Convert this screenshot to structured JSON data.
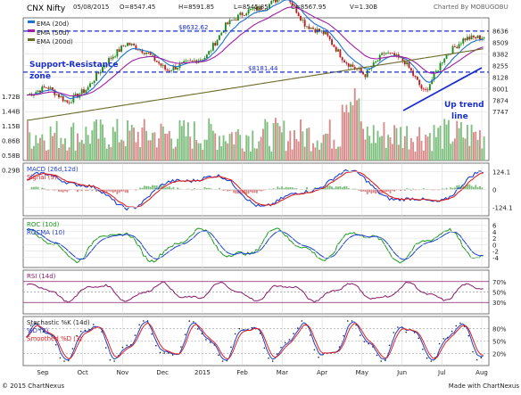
{
  "header": {
    "title": "CNX Nifty",
    "date": "05/08/2015",
    "open": "O=8547.45",
    "high": "H=8591.85",
    "low": "L=8545.85",
    "close": "C=8567.95",
    "volume": "V=1.30B",
    "brand": "Charted By MOBUGOBU"
  },
  "footer": {
    "copyright": "© 2015 ChartNexus",
    "made_with": "Made with ChartNexus"
  },
  "chart_data": [
    {
      "type": "candlestick",
      "panel": "price",
      "title": "CNX Nifty",
      "legend": [
        "EMA (20d)",
        "EMA (50d)",
        "EMA (200d)"
      ],
      "legend_colors": [
        "#1e6fd0",
        "#a020a0",
        "#6b6b2a"
      ],
      "x_ticks": [
        "Sep",
        "Oct",
        "Nov",
        "Dec",
        "2015",
        "Feb",
        "Mar",
        "Apr",
        "May",
        "Jun",
        "Jul",
        "Aug"
      ],
      "y_ticks": [
        8636,
        8509,
        8382,
        8255,
        8128,
        8001,
        7874,
        7747
      ],
      "volume_ticks": [
        "1.72B",
        "1.44B",
        "1.15B",
        "0.86B",
        "0.58B",
        "0.29B"
      ],
      "ylim": [
        7700,
        8700
      ],
      "price_path": [
        {
          "month": "Sep",
          "close": 7930
        },
        {
          "month": "Sep",
          "close": 8020
        },
        {
          "month": "Oct",
          "close": 7850
        },
        {
          "month": "Oct",
          "close": 8000
        },
        {
          "month": "Nov",
          "close": 8300
        },
        {
          "month": "Nov",
          "close": 8500
        },
        {
          "month": "Dec",
          "close": 8400
        },
        {
          "month": "Dec",
          "close": 8200
        },
        {
          "month": "Dec",
          "close": 8280
        },
        {
          "month": "2015",
          "close": 8350
        },
        {
          "month": "2015",
          "close": 8700
        },
        {
          "month": "Feb",
          "close": 8850
        },
        {
          "month": "Feb",
          "close": 8900
        },
        {
          "month": "Mar",
          "close": 9050
        },
        {
          "month": "Mar",
          "close": 8700
        },
        {
          "month": "Apr",
          "close": 8600
        },
        {
          "month": "Apr",
          "close": 8300
        },
        {
          "month": "May",
          "close": 8150
        },
        {
          "month": "May",
          "close": 8400
        },
        {
          "month": "Jun",
          "close": 8300
        },
        {
          "month": "Jun",
          "close": 7950
        },
        {
          "month": "Jul",
          "close": 8350
        },
        {
          "month": "Jul",
          "close": 8550
        },
        {
          "month": "Aug",
          "close": 8568
        }
      ],
      "annotations": [
        {
          "text": "$8632.62",
          "kind": "resistance",
          "value": 8632.62
        },
        {
          "text": "$8181.44",
          "kind": "support",
          "value": 8181.44
        },
        {
          "text": "Support-Resistance",
          "kind": "note"
        },
        {
          "text": "zone",
          "kind": "note"
        },
        {
          "text": "Up trend",
          "kind": "note"
        },
        {
          "text": "line",
          "kind": "note"
        }
      ],
      "grid": true
    },
    {
      "type": "line",
      "panel": "macd",
      "legend": [
        "MACD (26d,12d)",
        "Signal (9)"
      ],
      "legend_colors": [
        "#1a3fd0",
        "#e02020"
      ],
      "y_ticks": [
        124.1,
        0,
        -124.1
      ]
    },
    {
      "type": "line",
      "panel": "roc",
      "legend": [
        "ROC (10d)",
        "ROCMA (10)"
      ],
      "legend_colors": [
        "#1a9a1a",
        "#1a3fd0"
      ],
      "y_ticks": [
        6,
        4,
        2,
        0,
        -2,
        -4
      ]
    },
    {
      "type": "line",
      "panel": "rsi",
      "legend": [
        "RSI (14d)"
      ],
      "legend_colors": [
        "#8a1a6a"
      ],
      "y_ticks": [
        "70%",
        "50%",
        "30%"
      ]
    },
    {
      "type": "line",
      "panel": "stochastic",
      "legend": [
        "Stochastic %K (14d)",
        "%D (3)",
        "Smoothed %D (3)"
      ],
      "legend_colors": [
        "#222222",
        "#1a3fd0",
        "#e02020"
      ],
      "y_ticks": [
        "80%",
        "50%",
        "20%"
      ]
    }
  ]
}
